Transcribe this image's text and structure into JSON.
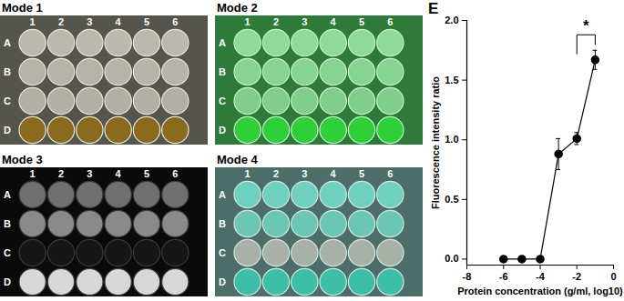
{
  "figure": {
    "photo_panels": [
      {
        "title": "Mode 1",
        "columns": [
          "1",
          "2",
          "3",
          "4",
          "5",
          "6"
        ],
        "rows": [
          "A",
          "B",
          "C",
          "D"
        ]
      },
      {
        "title": "Mode 2",
        "columns": [
          "1",
          "2",
          "3",
          "4",
          "5",
          "6"
        ],
        "rows": [
          "A",
          "B",
          "C",
          "D"
        ]
      },
      {
        "title": "Mode 3",
        "columns": [
          "1",
          "2",
          "3",
          "4",
          "5",
          "6"
        ],
        "rows": [
          "A",
          "B",
          "C",
          "D"
        ]
      },
      {
        "title": "Mode 4",
        "columns": [
          "1",
          "2",
          "3",
          "4",
          "5",
          "6"
        ],
        "rows": [
          "A",
          "B",
          "C",
          "D"
        ]
      }
    ]
  },
  "chart_data": {
    "type": "line",
    "panel_label": "E",
    "x_label": "Protein concentration (g/ml, log10)",
    "y_label": "Fluorescence intensity ratio",
    "x": [
      -6,
      -5,
      -4,
      -3,
      -2,
      -1
    ],
    "values": [
      0,
      0,
      0,
      0.88,
      1.01,
      1.67
    ],
    "error": [
      0,
      0,
      0,
      0.13,
      0.05,
      0.08
    ],
    "color": "#000000",
    "marker": "circle",
    "xlim": [
      -8,
      0
    ],
    "xticks": [
      -8,
      -6,
      -4,
      -2,
      0
    ],
    "ylim": [
      -0.05,
      2.0
    ],
    "yticks": [
      {
        "value": 0,
        "label": "0.0"
      },
      {
        "value": 0.5,
        "label": "0.5"
      },
      {
        "value": 1,
        "label": "1.0"
      },
      {
        "value": 1.5,
        "label": "1.5"
      },
      {
        "value": 2,
        "label": "2.0"
      }
    ],
    "annotations": [
      {
        "text": "*",
        "x": [
          -2,
          -1
        ],
        "y": 1.88,
        "y_ends": [
          1.72,
          1.8
        ]
      }
    ]
  }
}
